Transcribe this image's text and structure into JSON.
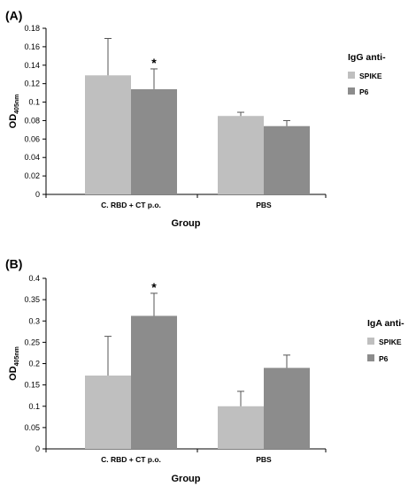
{
  "chart_data": [
    {
      "type": "bar",
      "panel_label": "(A)",
      "categories": [
        "C. RBD + CT p.o.",
        "PBS"
      ],
      "series": [
        {
          "name": "SPIKE",
          "color": "#bfbfbf",
          "values": [
            0.129,
            0.085
          ],
          "errors": [
            0.04,
            0.004
          ]
        },
        {
          "name": "P6",
          "color": "#8c8c8c",
          "values": [
            0.114,
            0.074
          ],
          "errors": [
            0.022,
            0.006
          ]
        }
      ],
      "ylim": [
        0,
        0.18
      ],
      "yticks": [
        "0",
        "0.02",
        "0.04",
        "0.06",
        "0.08",
        "0.1",
        "0.12",
        "0.14",
        "0.16",
        "0.18"
      ],
      "ylabel": "OD",
      "ylabel_sub": "405nm",
      "xlabel": "Group",
      "legend_title": "IgG anti-",
      "legend_position": "right",
      "significance": [
        {
          "series": 1,
          "category": 0,
          "symbol": "*"
        }
      ]
    },
    {
      "type": "bar",
      "panel_label": "(B)",
      "categories": [
        "C. RBD + CT p.o.",
        "PBS"
      ],
      "series": [
        {
          "name": "SPIKE",
          "color": "#bfbfbf",
          "values": [
            0.172,
            0.1
          ],
          "errors": [
            0.092,
            0.035
          ]
        },
        {
          "name": "P6",
          "color": "#8c8c8c",
          "values": [
            0.312,
            0.19
          ],
          "errors": [
            0.053,
            0.03
          ]
        }
      ],
      "ylim": [
        0,
        0.4
      ],
      "yticks": [
        "0",
        "0.05",
        "0.1",
        "0.15",
        "0.2",
        "0.25",
        "0.3",
        "0.35",
        "0.4"
      ],
      "ylabel": "OD",
      "ylabel_sub": "405nm",
      "xlabel": "Group",
      "legend_title": "IgA anti-",
      "legend_position": "right",
      "significance": [
        {
          "series": 1,
          "category": 0,
          "symbol": "*"
        }
      ]
    }
  ]
}
